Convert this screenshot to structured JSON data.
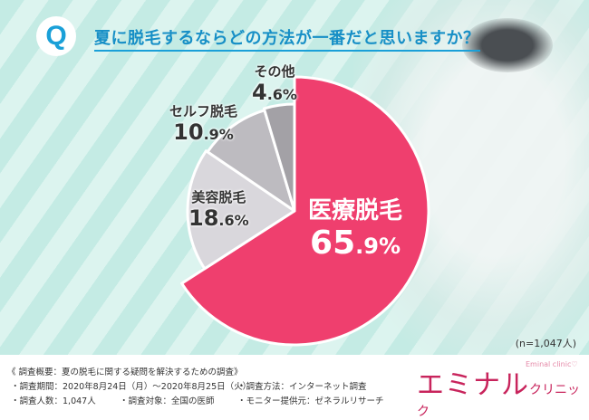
{
  "question": {
    "badge": "Q",
    "text": "夏に脱毛するならどの方法が一番だと思いますか？"
  },
  "chart_data": {
    "type": "pie",
    "title": "夏に脱毛するならどの方法が一番だと思いますか？",
    "start": "top",
    "direction": "clockwise",
    "slices": [
      {
        "label": "医療脱毛",
        "value": 65.9,
        "display_int": "65",
        "display_dec": ".9%",
        "color": "#ef3f6e"
      },
      {
        "label": "美容脱毛",
        "value": 18.6,
        "display_int": "18",
        "display_dec": ".6%",
        "color": "#d9d7dc"
      },
      {
        "label": "セルフ脱毛",
        "value": 10.9,
        "display_int": "10",
        "display_dec": ".9%",
        "color": "#bdbbc0"
      },
      {
        "label": "その他",
        "value": 4.6,
        "display_int": "4",
        "display_dec": ".6%",
        "color": "#a3a1a6"
      }
    ],
    "note": "(n=1,047人)"
  },
  "footer": {
    "heading": "《 調査概要：夏の脱毛に関する疑問を解決するための調査》",
    "period": "・調査期間：2020年8月24日（月）～2020年8月25日（火）",
    "method": "・調査方法：インターネット調査",
    "count": "・調査人数：1,047人",
    "target": "・調査対象：全国の医師",
    "provider": "・モニター提供元：ゼネラルリサーチ"
  },
  "logo": {
    "main": "エミナル",
    "sub": "クリニック",
    "en": "Eminal clinic♡"
  }
}
